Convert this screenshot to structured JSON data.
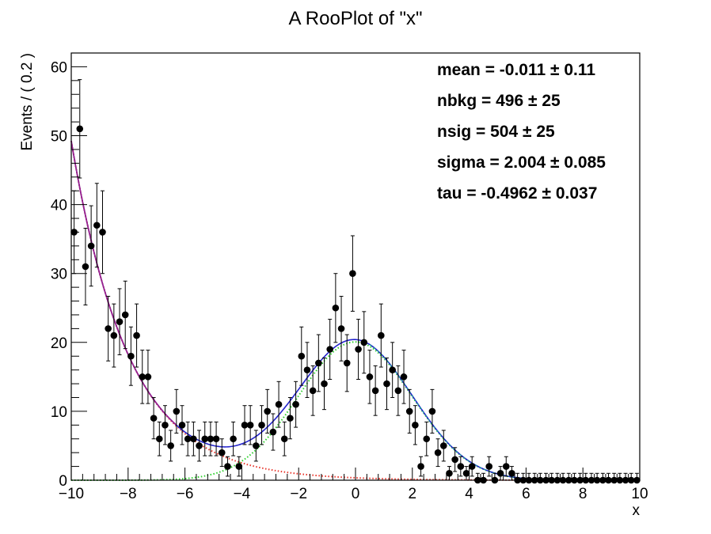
{
  "chart_data": {
    "type": "scatter",
    "title": "A RooPlot of \"x\"",
    "xlabel": "x",
    "ylabel": "Events / ( 0.2 )",
    "xlim": [
      -10,
      10
    ],
    "ylim": [
      0,
      62
    ],
    "x_ticks": [
      -10,
      -8,
      -6,
      -4,
      -2,
      0,
      2,
      4,
      6,
      8,
      10
    ],
    "x_tick_labels": [
      "−10",
      "−8",
      "−6",
      "−4",
      "−2",
      "0",
      "2",
      "4",
      "6",
      "8",
      "10"
    ],
    "y_ticks": [
      0,
      10,
      20,
      30,
      40,
      50,
      60
    ],
    "y_tick_labels": [
      "0",
      "10",
      "20",
      "30",
      "40",
      "50",
      "60"
    ],
    "grid": false,
    "legend": "none",
    "annotations": [
      "mean = -0.011 ± 0.11",
      "nbkg =  496 ± 25",
      "nsig =  504 ± 25",
      "sigma =  2.004 ± 0.085",
      "tau = -0.4962 ± 0.037"
    ],
    "annotation_placement": "top-right",
    "fit_parameters": {
      "mean": -0.011,
      "nbkg": 496,
      "nsig": 504,
      "sigma": 2.004,
      "tau": -0.4962,
      "bin_width": 0.2
    },
    "series": [
      {
        "kind": "points",
        "marker": "circle",
        "error_bars": "sqrt(N)",
        "color": "#000000",
        "x": [
          -9.9,
          -9.7,
          -9.5,
          -9.3,
          -9.1,
          -8.9,
          -8.7,
          -8.5,
          -8.3,
          -8.1,
          -7.9,
          -7.7,
          -7.5,
          -7.3,
          -7.1,
          -6.9,
          -6.7,
          -6.5,
          -6.3,
          -6.1,
          -5.9,
          -5.7,
          -5.5,
          -5.3,
          -5.1,
          -4.9,
          -4.7,
          -4.5,
          -4.3,
          -4.1,
          -3.9,
          -3.7,
          -3.5,
          -3.3,
          -3.1,
          -2.9,
          -2.7,
          -2.5,
          -2.3,
          -2.1,
          -1.9,
          -1.7,
          -1.5,
          -1.3,
          -1.1,
          -0.9,
          -0.7,
          -0.5,
          -0.3,
          -0.1,
          0.1,
          0.3,
          0.5,
          0.7,
          0.9,
          1.1,
          1.3,
          1.5,
          1.7,
          1.9,
          2.1,
          2.3,
          2.5,
          2.7,
          2.9,
          3.1,
          3.3,
          3.5,
          3.7,
          3.9,
          4.1,
          4.3,
          4.5,
          4.7,
          4.9,
          5.1,
          5.3,
          5.5,
          5.7,
          5.9,
          6.1,
          6.3,
          6.5,
          6.7,
          6.9,
          7.1,
          7.3,
          7.5,
          7.7,
          7.9,
          8.1,
          8.3,
          8.5,
          8.7,
          8.9,
          9.1,
          9.3,
          9.5,
          9.7,
          9.9
        ],
        "y": [
          36,
          51,
          31,
          34,
          37,
          36,
          22,
          21,
          23,
          24,
          18,
          21,
          15,
          15,
          9,
          6,
          8,
          5,
          10,
          8,
          6,
          6,
          5,
          6,
          6,
          6,
          4,
          2,
          6,
          2,
          8,
          8,
          5,
          8,
          10,
          7,
          11,
          6,
          9,
          11,
          18,
          16,
          13,
          17,
          14,
          19,
          25,
          22,
          17,
          30,
          19,
          20,
          15,
          13,
          21,
          14,
          16,
          13,
          15,
          10,
          8,
          2,
          6,
          10,
          4,
          5,
          1,
          3,
          2,
          1,
          2,
          0,
          0,
          2,
          0,
          1,
          2,
          1,
          0,
          0,
          0,
          0,
          0,
          0,
          0,
          0,
          0,
          0,
          0,
          0,
          0,
          0,
          0,
          0,
          0,
          0,
          0,
          0,
          0,
          0
        ]
      },
      {
        "kind": "curve",
        "component": "total",
        "color": "#2424cc",
        "dash": "solid"
      },
      {
        "kind": "curve",
        "component": "background",
        "color": "#e8362c",
        "dash": "dotted"
      },
      {
        "kind": "curve",
        "component": "signal",
        "color": "#2bd02b",
        "dash": "dotted"
      }
    ]
  }
}
